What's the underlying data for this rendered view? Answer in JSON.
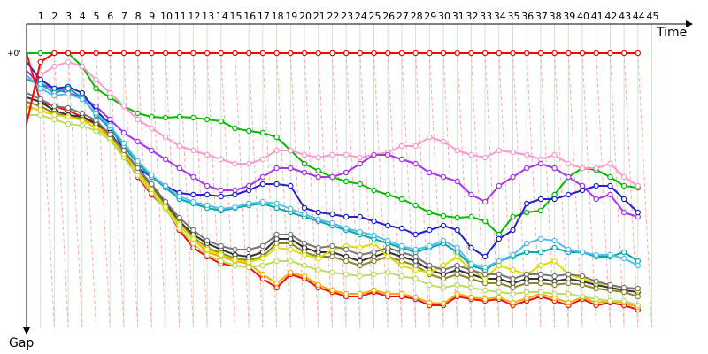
{
  "chart_data": {
    "type": "line",
    "x_axis_title": "Time",
    "y_axis_title": "Gap",
    "zero_label": "+0'",
    "laps": [
      "1",
      "2",
      "3",
      "4",
      "5",
      "6",
      "7",
      "8",
      "9",
      "10",
      "11",
      "12",
      "13",
      "14",
      "15",
      "16",
      "17",
      "18",
      "19",
      "20",
      "21",
      "22",
      "23",
      "24",
      "25",
      "26",
      "27",
      "28",
      "29",
      "30",
      "31",
      "32",
      "33",
      "34",
      "35",
      "36",
      "37",
      "38",
      "39",
      "40",
      "41",
      "42",
      "43",
      "44",
      "45"
    ],
    "grid": true,
    "leader_color": "#ff0000",
    "series": [
      {
        "color": "#00bb00",
        "values": [
          0,
          0,
          0,
          0,
          15,
          40,
          50,
          60,
          68,
          72,
          73,
          72,
          73,
          75,
          77,
          85,
          88,
          90,
          95,
          110,
          125,
          133,
          140,
          145,
          148,
          155,
          160,
          165,
          172,
          180,
          184,
          186,
          185,
          190,
          205,
          185,
          180,
          178,
          160,
          140,
          130,
          132,
          140,
          150,
          152
        ]
      },
      {
        "color": "#ff99cc",
        "values": [
          30,
          25,
          15,
          10,
          15,
          30,
          45,
          60,
          75,
          85,
          95,
          105,
          110,
          115,
          120,
          125,
          125,
          120,
          110,
          110,
          115,
          118,
          115,
          115,
          118,
          115,
          112,
          105,
          105,
          95,
          100,
          110,
          115,
          118,
          110,
          112,
          115,
          120,
          115,
          125,
          130,
          130,
          125,
          140,
          150
        ]
      },
      {
        "color": "#aa33ee",
        "values": [
          20,
          35,
          40,
          45,
          50,
          60,
          75,
          90,
          100,
          110,
          120,
          130,
          140,
          150,
          155,
          155,
          150,
          140,
          130,
          130,
          135,
          140,
          140,
          135,
          125,
          115,
          115,
          120,
          125,
          135,
          140,
          145,
          160,
          168,
          150,
          140,
          130,
          125,
          130,
          140,
          150,
          165,
          160,
          180,
          185
        ]
      },
      {
        "color": "#2222cc",
        "values": [
          10,
          30,
          40,
          38,
          45,
          65,
          80,
          110,
          130,
          140,
          150,
          158,
          160,
          160,
          162,
          160,
          155,
          148,
          148,
          150,
          175,
          180,
          182,
          185,
          185,
          190,
          195,
          198,
          205,
          200,
          195,
          200,
          220,
          230,
          210,
          200,
          170,
          165,
          165,
          160,
          155,
          150,
          150,
          165,
          180
        ]
      },
      {
        "color": "#00aaaa",
        "values": [
          30,
          35,
          45,
          40,
          50,
          70,
          85,
          105,
          125,
          140,
          152,
          165,
          170,
          175,
          178,
          175,
          172,
          170,
          175,
          180,
          185,
          190,
          195,
          200,
          205,
          210,
          215,
          220,
          225,
          220,
          215,
          225,
          240,
          245,
          235,
          230,
          225,
          225,
          220,
          225,
          225,
          230,
          230,
          225,
          235
        ]
      },
      {
        "color": "#ff0000",
        "values": [
          80,
          10,
          0,
          0,
          0,
          0,
          0,
          0,
          0,
          0,
          0,
          0,
          0,
          0,
          0,
          0,
          0,
          0,
          0,
          0,
          0,
          0,
          0,
          0,
          0,
          0,
          0,
          0,
          0,
          0,
          0,
          0,
          0,
          0,
          0,
          0,
          0,
          0,
          0,
          0,
          0,
          0,
          0,
          0,
          0
        ]
      },
      {
        "color": "#ee1111",
        "values": [
          0,
          55,
          60,
          65,
          72,
          78,
          95,
          115,
          140,
          160,
          175,
          200,
          220,
          230,
          238,
          240,
          242,
          255,
          265,
          250,
          255,
          265,
          270,
          275,
          275,
          270,
          275,
          275,
          278,
          285,
          285,
          275,
          278,
          280,
          278,
          285,
          280,
          275,
          280,
          285,
          278,
          285,
          282,
          285,
          290
        ]
      },
      {
        "color": "#ffaa00",
        "values": [
          60,
          65,
          70,
          70,
          75,
          80,
          95,
          112,
          135,
          155,
          172,
          195,
          210,
          225,
          230,
          235,
          238,
          250,
          260,
          248,
          252,
          262,
          268,
          272,
          272,
          268,
          272,
          272,
          276,
          282,
          283,
          272,
          276,
          278,
          276,
          282,
          277,
          272,
          277,
          282,
          276,
          282,
          280,
          282,
          287
        ]
      },
      {
        "color": "#333333",
        "values": [
          50,
          55,
          65,
          70,
          72,
          80,
          90,
          110,
          130,
          150,
          170,
          190,
          205,
          215,
          222,
          228,
          230,
          225,
          210,
          210,
          220,
          225,
          225,
          230,
          235,
          230,
          225,
          230,
          235,
          245,
          250,
          245,
          250,
          255,
          255,
          260,
          255,
          255,
          258,
          255,
          258,
          262,
          265,
          268,
          270
        ]
      },
      {
        "color": "#888833",
        "values": [
          55,
          60,
          68,
          72,
          75,
          85,
          95,
          112,
          132,
          152,
          172,
          192,
          208,
          220,
          226,
          232,
          234,
          230,
          215,
          215,
          225,
          230,
          230,
          235,
          240,
          235,
          230,
          235,
          240,
          250,
          255,
          250,
          255,
          260,
          260,
          265,
          260,
          260,
          262,
          260,
          262,
          266,
          268,
          270,
          275
        ]
      },
      {
        "color": "#bbdd66",
        "values": [
          70,
          70,
          75,
          80,
          82,
          88,
          98,
          118,
          138,
          158,
          176,
          198,
          215,
          228,
          235,
          240,
          242,
          240,
          235,
          235,
          240,
          245,
          248,
          250,
          252,
          250,
          248,
          252,
          255,
          262,
          265,
          262,
          265,
          268,
          270,
          272,
          270,
          270,
          272,
          272,
          275,
          278,
          280,
          280,
          285
        ]
      },
      {
        "color": "#dddd00",
        "values": [
          62,
          64,
          70,
          72,
          76,
          84,
          96,
          114,
          134,
          154,
          174,
          194,
          210,
          222,
          228,
          234,
          236,
          232,
          220,
          222,
          228,
          232,
          222,
          218,
          220,
          215,
          230,
          240,
          245,
          248,
          240,
          230,
          245,
          255,
          240,
          245,
          250,
          240,
          235,
          250,
          255,
          260,
          262,
          265,
          268
        ]
      },
      {
        "color": "#55bbee",
        "values": [
          25,
          40,
          48,
          46,
          52,
          68,
          82,
          102,
          122,
          138,
          150,
          162,
          168,
          172,
          176,
          174,
          170,
          168,
          170,
          176,
          182,
          188,
          192,
          198,
          202,
          206,
          212,
          218,
          222,
          218,
          212,
          220,
          238,
          242,
          235,
          228,
          215,
          210,
          212,
          222,
          225,
          228,
          228,
          232,
          240
        ]
      },
      {
        "color": "#777777",
        "values": [
          45,
          52,
          60,
          62,
          68,
          76,
          92,
          110,
          130,
          148,
          168,
          186,
          200,
          212,
          218,
          222,
          222,
          218,
          205,
          205,
          215,
          220,
          218,
          222,
          228,
          225,
          220,
          225,
          230,
          240,
          245,
          240,
          245,
          250,
          250,
          255,
          250,
          250,
          252,
          250,
          252,
          258,
          262,
          265,
          266
        ]
      }
    ]
  }
}
